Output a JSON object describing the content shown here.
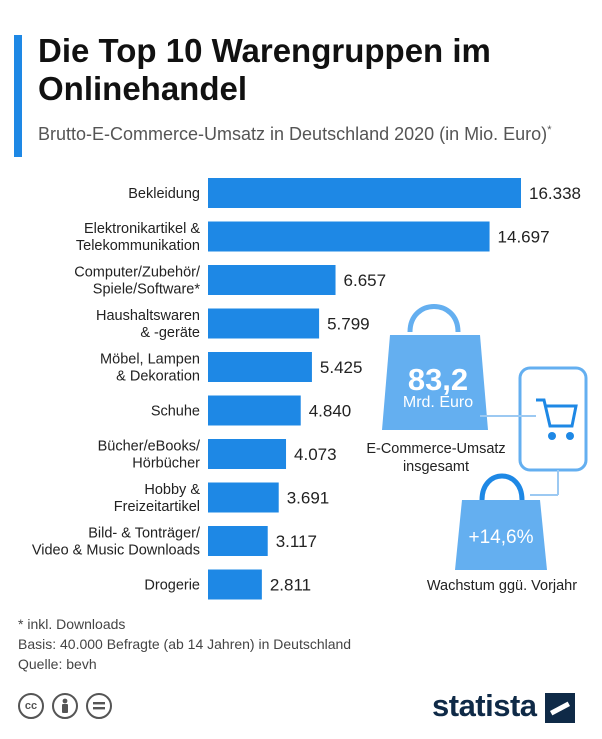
{
  "title": "Die Top 10 Warengruppen im Onlinehandel",
  "subtitle": "Brutto-E-Commerce-Umsatz in Deutschland 2020 (in Mio. Euro)",
  "subtitle_mark": "*",
  "colors": {
    "bar": "#1e88e5",
    "accent": "#1e88e5",
    "bag_fill": "#64aff0",
    "bag_dark": "#1e88e5"
  },
  "chart_data": {
    "type": "bar",
    "orientation": "horizontal",
    "categories": [
      [
        "Bekleidung"
      ],
      [
        "Elektronikartikel &",
        "Telekommunikation"
      ],
      [
        "Computer/Zubehör/",
        "Spiele/Software*"
      ],
      [
        "Haushaltswaren",
        "& -geräte"
      ],
      [
        "Möbel, Lampen",
        "& Dekoration"
      ],
      [
        "Schuhe"
      ],
      [
        "Bücher/eBooks/",
        "Hörbücher"
      ],
      [
        "Hobby &",
        "Freizeitartikel"
      ],
      [
        "Bild- & Tonträger/",
        "Video & Music Downloads"
      ],
      [
        "Drogerie"
      ]
    ],
    "values": [
      16338,
      14697,
      6657,
      5799,
      5425,
      4840,
      4073,
      3691,
      3117,
      2811
    ],
    "value_labels": [
      "16.338",
      "14.697",
      "6.657",
      "5.799",
      "5.425",
      "4.840",
      "4.073",
      "3.691",
      "3.117",
      "2.811"
    ]
  },
  "infographic": {
    "total_value": "83,2",
    "total_unit": "Mrd. Euro",
    "total_caption_1": "E-Commerce-Umsatz",
    "total_caption_2": "insgesamt",
    "growth_value": "+14,6%",
    "growth_caption": "Wachstum ggü. Vorjahr"
  },
  "footnotes": {
    "note": "* inkl. Downloads",
    "basis": "Basis: 40.000 Befragte (ab 14 Jahren) in Deutschland",
    "source": "Quelle: bevh"
  },
  "license_icons": [
    "cc-icon",
    "by-icon",
    "nd-icon"
  ],
  "brand": "statista"
}
